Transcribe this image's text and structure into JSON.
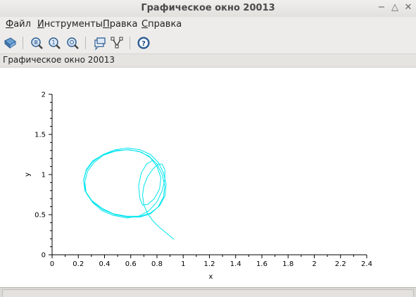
{
  "window": {
    "title": "Графическое окно 20013",
    "controls": [
      "minimize-icon",
      "maximize-icon",
      "close-icon"
    ]
  },
  "menubar": {
    "items": [
      {
        "ul": "Ф",
        "rest": "айл"
      },
      {
        "ul": "И",
        "rest": "нструменты"
      },
      {
        "ul": "П",
        "rest": "равка"
      },
      {
        "ul": "С",
        "rest": "правка"
      }
    ]
  },
  "toolbar": {
    "buttons": [
      "rotate-icon",
      "zoom-grid-icon",
      "zoom-one-icon",
      "zoom-search-icon",
      "datatip-icon",
      "editor-icon",
      "help-icon"
    ]
  },
  "figure": {
    "title": "Графическое окно 20013"
  },
  "chart_data": {
    "type": "line",
    "xlabel": "x",
    "ylabel": "y",
    "xlim": [
      0,
      2.4
    ],
    "ylim": [
      0,
      2
    ],
    "xticks": [
      "0",
      "0.2",
      "0.4",
      "0.6",
      "0.8",
      "1",
      "1.2",
      "1.4",
      "1.6",
      "1.8",
      "2",
      "2.2",
      "2.4"
    ],
    "yticks": [
      "0",
      "0.5",
      "1",
      "1.5",
      "2"
    ],
    "grid": false,
    "series": [
      {
        "color": "#00e5ee",
        "x": [
          0.93,
          0.88,
          0.82,
          0.77,
          0.73,
          0.7,
          0.69,
          0.7,
          0.73,
          0.77,
          0.81,
          0.84,
          0.86,
          0.86,
          0.84,
          0.8,
          0.74,
          0.66,
          0.57,
          0.47,
          0.38,
          0.31,
          0.26,
          0.25,
          0.27,
          0.32,
          0.39,
          0.48,
          0.57,
          0.66,
          0.74,
          0.8,
          0.84,
          0.86,
          0.85,
          0.81,
          0.75,
          0.67,
          0.58,
          0.48,
          0.39,
          0.31,
          0.26,
          0.24,
          0.26,
          0.31,
          0.39,
          0.48,
          0.58,
          0.67,
          0.75,
          0.81,
          0.85,
          0.87,
          0.86,
          0.82,
          0.75,
          0.67,
          0.57,
          0.47,
          0.38,
          0.3,
          0.25,
          0.24,
          0.26,
          0.31,
          0.39,
          0.49,
          0.59,
          0.68,
          0.75,
          0.8,
          0.83,
          0.82,
          0.78,
          0.73,
          0.69,
          0.67,
          0.66,
          0.68,
          0.72,
          0.77
        ],
        "y": [
          0.19,
          0.26,
          0.34,
          0.42,
          0.51,
          0.62,
          0.74,
          0.86,
          0.98,
          1.07,
          1.13,
          1.13,
          1.06,
          0.94,
          0.8,
          0.66,
          0.55,
          0.48,
          0.46,
          0.49,
          0.55,
          0.65,
          0.77,
          0.91,
          1.04,
          1.15,
          1.24,
          1.29,
          1.31,
          1.29,
          1.23,
          1.13,
          1.0,
          0.86,
          0.72,
          0.6,
          0.51,
          0.47,
          0.47,
          0.5,
          0.56,
          0.66,
          0.78,
          0.92,
          1.05,
          1.16,
          1.25,
          1.31,
          1.33,
          1.31,
          1.25,
          1.15,
          1.02,
          0.88,
          0.73,
          0.61,
          0.52,
          0.48,
          0.48,
          0.51,
          0.58,
          0.68,
          0.8,
          0.93,
          1.06,
          1.17,
          1.25,
          1.3,
          1.31,
          1.28,
          1.21,
          1.1,
          0.96,
          0.82,
          0.7,
          0.63,
          0.62,
          0.7,
          0.86,
          1.02,
          1.13,
          1.18
        ]
      }
    ]
  }
}
